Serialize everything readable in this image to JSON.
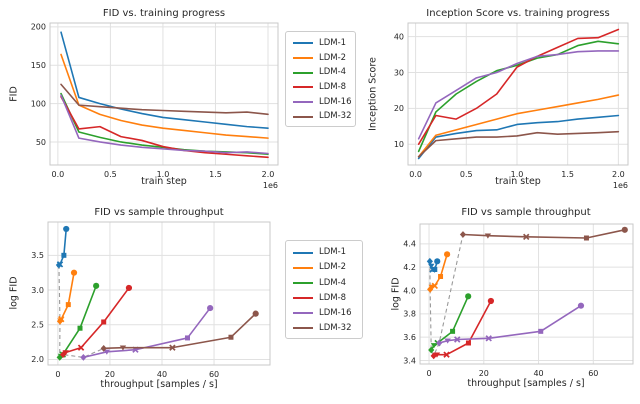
{
  "figure_colors": {
    "background": "#ffffff",
    "grid": "#e1e1e1",
    "spine": "#c9c9c9",
    "text": "#262626",
    "dashed_line": "#9a9a9a"
  },
  "palette": [
    "#1f77b4",
    "#ff7f0e",
    "#2ca02c",
    "#d62728",
    "#9467bd",
    "#8c564b"
  ],
  "models": [
    "LDM-1",
    "LDM-2",
    "LDM-4",
    "LDM-8",
    "LDM-16",
    "LDM-32"
  ],
  "legends": [
    {
      "labels": [
        "LDM-1",
        "LDM-2",
        "LDM-4",
        "LDM-8",
        "LDM-16",
        "LDM-32"
      ]
    },
    {
      "labels": [
        "LDM-1",
        "LDM-2",
        "LDM-4",
        "LDM-8",
        "LDM-16",
        "LDM-32"
      ]
    }
  ],
  "chart_data": [
    {
      "id": "fid-vs-training-progress",
      "type": "line",
      "title": "FID vs. training progress",
      "xlabel": "train step",
      "ylabel": "FID",
      "x_offset_label": "1e6",
      "xlim": [
        -0.075,
        2.095
      ],
      "ylim": [
        20,
        205
      ],
      "xticks": [
        0,
        0.5,
        1.0,
        1.5,
        2.0
      ],
      "xtick_labels": [
        "0.0",
        "0.5",
        "1.0",
        "1.5",
        "2.0"
      ],
      "yticks": [
        50,
        100,
        150,
        200
      ],
      "ytick_labels": [
        "50",
        "100",
        "150",
        "200"
      ],
      "grid": true,
      "legend_position": "outside-right",
      "x": [
        0.03,
        0.2,
        0.4,
        0.6,
        0.8,
        1.0,
        1.2,
        1.4,
        1.6,
        1.8,
        2.0
      ],
      "series": [
        {
          "name": "LDM-1",
          "color": "#1f77b4",
          "values": [
            193,
            108,
            100,
            93,
            87,
            82,
            79,
            76,
            73,
            70,
            68
          ]
        },
        {
          "name": "LDM-2",
          "color": "#ff7f0e",
          "values": [
            164,
            98,
            86,
            78,
            72,
            68,
            65,
            62,
            59,
            57,
            55
          ]
        },
        {
          "name": "LDM-4",
          "color": "#2ca02c",
          "values": [
            113,
            63,
            56,
            50,
            46,
            43,
            40,
            38,
            37,
            36,
            34
          ]
        },
        {
          "name": "LDM-8",
          "color": "#d62728",
          "values": [
            109,
            67,
            70,
            57,
            52,
            44,
            39,
            36,
            34,
            32,
            30
          ]
        },
        {
          "name": "LDM-16",
          "color": "#9467bd",
          "values": [
            111,
            55,
            50,
            46,
            43,
            41,
            39,
            38,
            36,
            37,
            35
          ]
        },
        {
          "name": "LDM-32",
          "color": "#8c564b",
          "values": [
            125,
            98,
            96,
            94,
            92,
            91,
            90,
            89,
            88,
            89,
            86
          ]
        }
      ]
    },
    {
      "id": "inception-score-vs-training-progress",
      "type": "line",
      "title": "Inception Score vs. training progress",
      "xlabel": "train step",
      "ylabel": "Inception Score",
      "x_offset_label": "1e6",
      "xlim": [
        -0.075,
        2.095
      ],
      "ylim": [
        4.2,
        43.8
      ],
      "xticks": [
        0,
        0.5,
        1.0,
        1.5,
        2.0
      ],
      "xtick_labels": [
        "0.0",
        "0.5",
        "1.0",
        "1.5",
        "2.0"
      ],
      "yticks": [
        10,
        20,
        30,
        40
      ],
      "ytick_labels": [
        "10",
        "20",
        "30",
        "40"
      ],
      "grid": true,
      "legend_position": "none",
      "x": [
        0.03,
        0.2,
        0.4,
        0.6,
        0.8,
        1.0,
        1.2,
        1.4,
        1.6,
        1.8,
        2.0
      ],
      "series": [
        {
          "name": "LDM-1",
          "color": "#1f77b4",
          "values": [
            6,
            12,
            13,
            13.8,
            14,
            15.5,
            16,
            16.3,
            17,
            17.5,
            18
          ]
        },
        {
          "name": "LDM-2",
          "color": "#ff7f0e",
          "values": [
            6.5,
            12.5,
            14,
            15.5,
            17,
            18.5,
            19.5,
            20.5,
            21.5,
            22.5,
            23.7
          ]
        },
        {
          "name": "LDM-4",
          "color": "#2ca02c",
          "values": [
            8,
            19,
            24,
            27.5,
            30.5,
            32,
            34,
            35,
            37.5,
            38.7,
            38
          ]
        },
        {
          "name": "LDM-8",
          "color": "#d62728",
          "values": [
            10,
            18,
            17,
            20,
            24,
            31.5,
            34.5,
            37,
            39.5,
            39.7,
            42
          ]
        },
        {
          "name": "LDM-16",
          "color": "#9467bd",
          "values": [
            11.5,
            21.5,
            25,
            28.5,
            30,
            32.5,
            34.5,
            35,
            35.8,
            36,
            36
          ]
        },
        {
          "name": "LDM-32",
          "color": "#8c564b",
          "values": [
            6.5,
            11,
            11.5,
            12,
            12,
            12.3,
            13.2,
            12.8,
            13,
            13.2,
            13.5
          ]
        }
      ]
    },
    {
      "id": "fid-vs-sample-throughput-left",
      "type": "scatter-line",
      "title": "FID vs sample throughput",
      "xlabel": "throughput [samples / s]",
      "ylabel": "log FID",
      "xlim": [
        -3.8,
        81.5
      ],
      "ylim": [
        1.92,
        3.98
      ],
      "xticks": [
        0,
        20,
        40,
        60
      ],
      "xtick_labels": [
        "0",
        "20",
        "40",
        "60"
      ],
      "yticks": [
        2.0,
        2.5,
        3.0,
        3.5
      ],
      "ytick_labels": [
        "2.0",
        "2.5",
        "3.0",
        "3.5"
      ],
      "grid": true,
      "legend_position": "outside-right",
      "dashed_path": [
        [
          0.4,
          3.36
        ],
        [
          0.8,
          2.55
        ],
        [
          0.7,
          2.03
        ],
        [
          2.0,
          2.07
        ],
        [
          9.8,
          2.03
        ],
        [
          17.6,
          2.16
        ]
      ],
      "series": [
        {
          "name": "LDM-1",
          "color": "#1f77b4",
          "points": [
            [
              0.4,
              3.36,
              "d"
            ],
            [
              0.8,
              3.37,
              "x"
            ],
            [
              2.3,
              3.5,
              "s"
            ],
            [
              3.2,
              3.88,
              "o"
            ]
          ]
        },
        {
          "name": "LDM-2",
          "color": "#ff7f0e",
          "points": [
            [
              0.8,
              2.55,
              "d"
            ],
            [
              1.0,
              2.56,
              "t"
            ],
            [
              1.3,
              2.58,
              "x"
            ],
            [
              4.0,
              2.79,
              "s"
            ],
            [
              6.2,
              3.25,
              "o"
            ]
          ]
        },
        {
          "name": "LDM-4",
          "color": "#2ca02c",
          "points": [
            [
              0.7,
              2.03,
              "d"
            ],
            [
              1.2,
              2.05,
              "t"
            ],
            [
              1.9,
              2.07,
              "x"
            ],
            [
              8.5,
              2.45,
              "s"
            ],
            [
              14.7,
              3.06,
              "o"
            ]
          ]
        },
        {
          "name": "LDM-8",
          "color": "#d62728",
          "points": [
            [
              2.0,
              2.07,
              "d"
            ],
            [
              3.0,
              2.1,
              "t"
            ],
            [
              8.9,
              2.17,
              "x"
            ],
            [
              17.6,
              2.54,
              "s"
            ],
            [
              27.3,
              3.03,
              "o"
            ]
          ]
        },
        {
          "name": "LDM-16",
          "color": "#9467bd",
          "points": [
            [
              9.8,
              2.03,
              "d"
            ],
            [
              18.8,
              2.11,
              "t"
            ],
            [
              29.8,
              2.14,
              "x"
            ],
            [
              49.8,
              2.31,
              "s"
            ],
            [
              58.5,
              2.74,
              "o"
            ]
          ]
        },
        {
          "name": "LDM-32",
          "color": "#8c564b",
          "points": [
            [
              17.6,
              2.16,
              "d"
            ],
            [
              25.0,
              2.17,
              "t"
            ],
            [
              44.0,
              2.17,
              "x"
            ],
            [
              66.5,
              2.32,
              "s"
            ],
            [
              76.0,
              2.66,
              "o"
            ]
          ]
        }
      ]
    },
    {
      "id": "fid-vs-sample-throughput-right",
      "type": "scatter-line",
      "title": "FID vs sample throughput",
      "xlabel": "throughput [samples / s]",
      "ylabel": "log FID",
      "xlim": [
        -3.3,
        74.5
      ],
      "ylim": [
        3.37,
        4.57
      ],
      "xticks": [
        0,
        20,
        40,
        60
      ],
      "xtick_labels": [
        "0",
        "20",
        "40",
        "60"
      ],
      "yticks": [
        3.4,
        3.6,
        3.8,
        4.0,
        4.2,
        4.4
      ],
      "ytick_labels": [
        "3.4",
        "3.6",
        "3.8",
        "4.0",
        "4.2",
        "4.4"
      ],
      "grid": true,
      "legend_position": "none",
      "dashed_path": [
        [
          0.3,
          4.25
        ],
        [
          0.4,
          4.01
        ],
        [
          0.8,
          3.49
        ],
        [
          1.7,
          3.44
        ],
        [
          3.7,
          3.55
        ],
        [
          12.4,
          4.48
        ]
      ],
      "series": [
        {
          "name": "LDM-1",
          "color": "#1f77b4",
          "points": [
            [
              0.3,
              4.25,
              "d"
            ],
            [
              0.8,
              4.21,
              "t"
            ],
            [
              1.3,
              4.18,
              "x"
            ],
            [
              2.1,
              4.18,
              "s"
            ],
            [
              3.0,
              4.25,
              "o"
            ]
          ]
        },
        {
          "name": "LDM-2",
          "color": "#ff7f0e",
          "points": [
            [
              0.4,
              4.01,
              "d"
            ],
            [
              1.0,
              4.03,
              "t"
            ],
            [
              2.1,
              4.04,
              "x"
            ],
            [
              4.2,
              4.12,
              "s"
            ],
            [
              6.6,
              4.31,
              "o"
            ]
          ]
        },
        {
          "name": "LDM-4",
          "color": "#2ca02c",
          "points": [
            [
              0.8,
              3.49,
              "d"
            ],
            [
              1.8,
              3.53,
              "t"
            ],
            [
              3.1,
              3.55,
              "x"
            ],
            [
              8.6,
              3.65,
              "s"
            ],
            [
              14.3,
              3.95,
              "o"
            ]
          ]
        },
        {
          "name": "LDM-8",
          "color": "#d62728",
          "points": [
            [
              1.7,
              3.44,
              "d"
            ],
            [
              2.9,
              3.45,
              "t"
            ],
            [
              6.4,
              3.45,
              "x"
            ],
            [
              14.4,
              3.55,
              "s"
            ],
            [
              22.6,
              3.91,
              "o"
            ]
          ]
        },
        {
          "name": "LDM-16",
          "color": "#9467bd",
          "points": [
            [
              3.7,
              3.55,
              "d"
            ],
            [
              6.8,
              3.57,
              "t"
            ],
            [
              10.3,
              3.58,
              "x"
            ],
            [
              21.8,
              3.59,
              "x"
            ],
            [
              40.8,
              3.65,
              "s"
            ],
            [
              55.5,
              3.87,
              "o"
            ]
          ]
        },
        {
          "name": "LDM-32",
          "color": "#8c564b",
          "points": [
            [
              12.4,
              4.48,
              "d"
            ],
            [
              21.5,
              4.47,
              "t"
            ],
            [
              35.5,
              4.46,
              "x"
            ],
            [
              57.5,
              4.45,
              "s"
            ],
            [
              71.5,
              4.52,
              "o"
            ]
          ]
        }
      ]
    }
  ]
}
